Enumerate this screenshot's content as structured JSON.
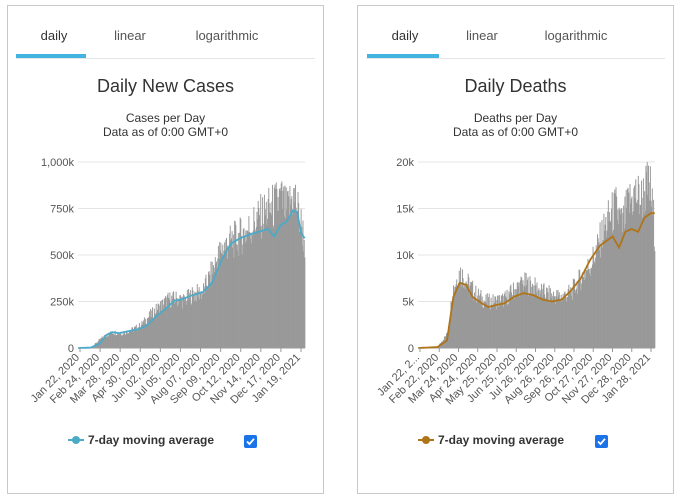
{
  "panels": [
    {
      "id": "cases",
      "tabs": [
        {
          "label": "daily",
          "active": true
        },
        {
          "label": "linear",
          "active": false
        },
        {
          "label": "logarithmic",
          "active": false
        }
      ],
      "title": "Daily New Cases",
      "subtitle_1": "Cases per Day",
      "subtitle_2": "Data as of 0:00 GMT+0",
      "legend_label": "7-day moving average",
      "legend_checked": true,
      "line_color": "#4aaac8",
      "bar_color": "#999999"
    },
    {
      "id": "deaths",
      "tabs": [
        {
          "label": "daily",
          "active": true
        },
        {
          "label": "linear",
          "active": false
        },
        {
          "label": "logarithmic",
          "active": false
        }
      ],
      "title": "Daily Deaths",
      "subtitle_1": "Deaths per Day",
      "subtitle_2": "Data as of 0:00 GMT+0",
      "legend_label": "7-day moving average",
      "legend_checked": true,
      "line_color": "#b07418",
      "bar_color": "#999999"
    }
  ],
  "chart_data": [
    {
      "type": "bar",
      "title": "Daily New Cases",
      "subtitle": "Cases per Day",
      "x_ticks": [
        "Jan 22, 2020",
        "Feb 24, 2020",
        "Mar 28, 2020",
        "Apr 30, 2020",
        "Jun 02, 2020",
        "Jul 05, 2020",
        "Aug 07, 2020",
        "Sep 09, 2020",
        "Oct 12, 2020",
        "Nov 14, 2020",
        "Dec 17, 2020",
        "Jan 19, 2021"
      ],
      "y_ticks": [
        "0",
        "250k",
        "500k",
        "750k",
        "1,000k"
      ],
      "ylim": [
        0,
        1000000
      ],
      "grid": true,
      "legend": "bottom",
      "bars": {
        "days": [
          0,
          20,
          40,
          55,
          70,
          85,
          100,
          115,
          130,
          145,
          160,
          170,
          185,
          200,
          215,
          230,
          245,
          260,
          275,
          285,
          295,
          305,
          315,
          325,
          335,
          345,
          350,
          355,
          360,
          364
        ],
        "values": [
          0,
          2000,
          60000,
          85000,
          78000,
          95000,
          120000,
          175000,
          220000,
          260000,
          265000,
          255000,
          290000,
          300000,
          410000,
          530000,
          570000,
          600000,
          640000,
          680000,
          710000,
          740000,
          760000,
          800000,
          730000,
          820000,
          790000,
          700000,
          640000,
          560000
        ]
      },
      "series": [
        {
          "name": "7-day moving average",
          "days": [
            0,
            20,
            35,
            45,
            55,
            65,
            80,
            95,
            110,
            125,
            140,
            155,
            165,
            180,
            200,
            215,
            230,
            245,
            260,
            275,
            285,
            295,
            305,
            315,
            325,
            335,
            345,
            352,
            358,
            364
          ],
          "values": [
            0,
            2000,
            25000,
            70000,
            85000,
            80000,
            90000,
            100000,
            120000,
            170000,
            210000,
            255000,
            260000,
            280000,
            300000,
            350000,
            470000,
            560000,
            590000,
            610000,
            620000,
            630000,
            640000,
            600000,
            660000,
            680000,
            740000,
            730000,
            620000,
            590000
          ]
        }
      ]
    },
    {
      "type": "bar",
      "title": "Daily Deaths",
      "subtitle": "Deaths per Day",
      "x_ticks": [
        "Jan 22, 2...",
        "Feb 22, 2020",
        "Mar 24, 2020",
        "Apr 24, 2020",
        "May 25, 2020",
        "Jun 25, 2020",
        "Jul 26, 2020",
        "Aug 26, 2020",
        "Sep 26, 2020",
        "Oct 27, 2020",
        "Nov 27, 2020",
        "Dec 28, 2020",
        "Jan 28, 2021"
      ],
      "y_ticks": [
        "0",
        "5k",
        "10k",
        "15k",
        "20k"
      ],
      "ylim": [
        0,
        20000
      ],
      "grid": true,
      "legend": "bottom",
      "bars": {
        "days": [
          0,
          30,
          45,
          55,
          65,
          75,
          90,
          105,
          120,
          135,
          150,
          165,
          180,
          195,
          210,
          225,
          240,
          255,
          270,
          280,
          290,
          300,
          310,
          320,
          330,
          340,
          350,
          358,
          364,
          371
        ],
        "values": [
          0,
          100,
          1500,
          6500,
          8200,
          7200,
          5800,
          5000,
          5000,
          5200,
          6200,
          7000,
          6600,
          6000,
          5600,
          5500,
          6000,
          7500,
          9000,
          10500,
          12500,
          14000,
          15000,
          13000,
          15500,
          16500,
          16000,
          17300,
          17000,
          12500
        ]
      },
      "series": [
        {
          "name": "7-day moving average",
          "days": [
            0,
            30,
            45,
            55,
            65,
            75,
            85,
            100,
            110,
            120,
            135,
            150,
            165,
            180,
            195,
            210,
            225,
            240,
            255,
            270,
            285,
            295,
            305,
            315,
            325,
            335,
            345,
            355,
            365,
            371
          ],
          "values": [
            0,
            100,
            800,
            5500,
            7000,
            6800,
            5500,
            4800,
            4400,
            4600,
            4800,
            5500,
            5900,
            5700,
            5200,
            5000,
            5200,
            6200,
            7500,
            9500,
            11000,
            11500,
            12000,
            10800,
            12500,
            12800,
            12500,
            14000,
            14500,
            14500
          ]
        }
      ]
    }
  ]
}
